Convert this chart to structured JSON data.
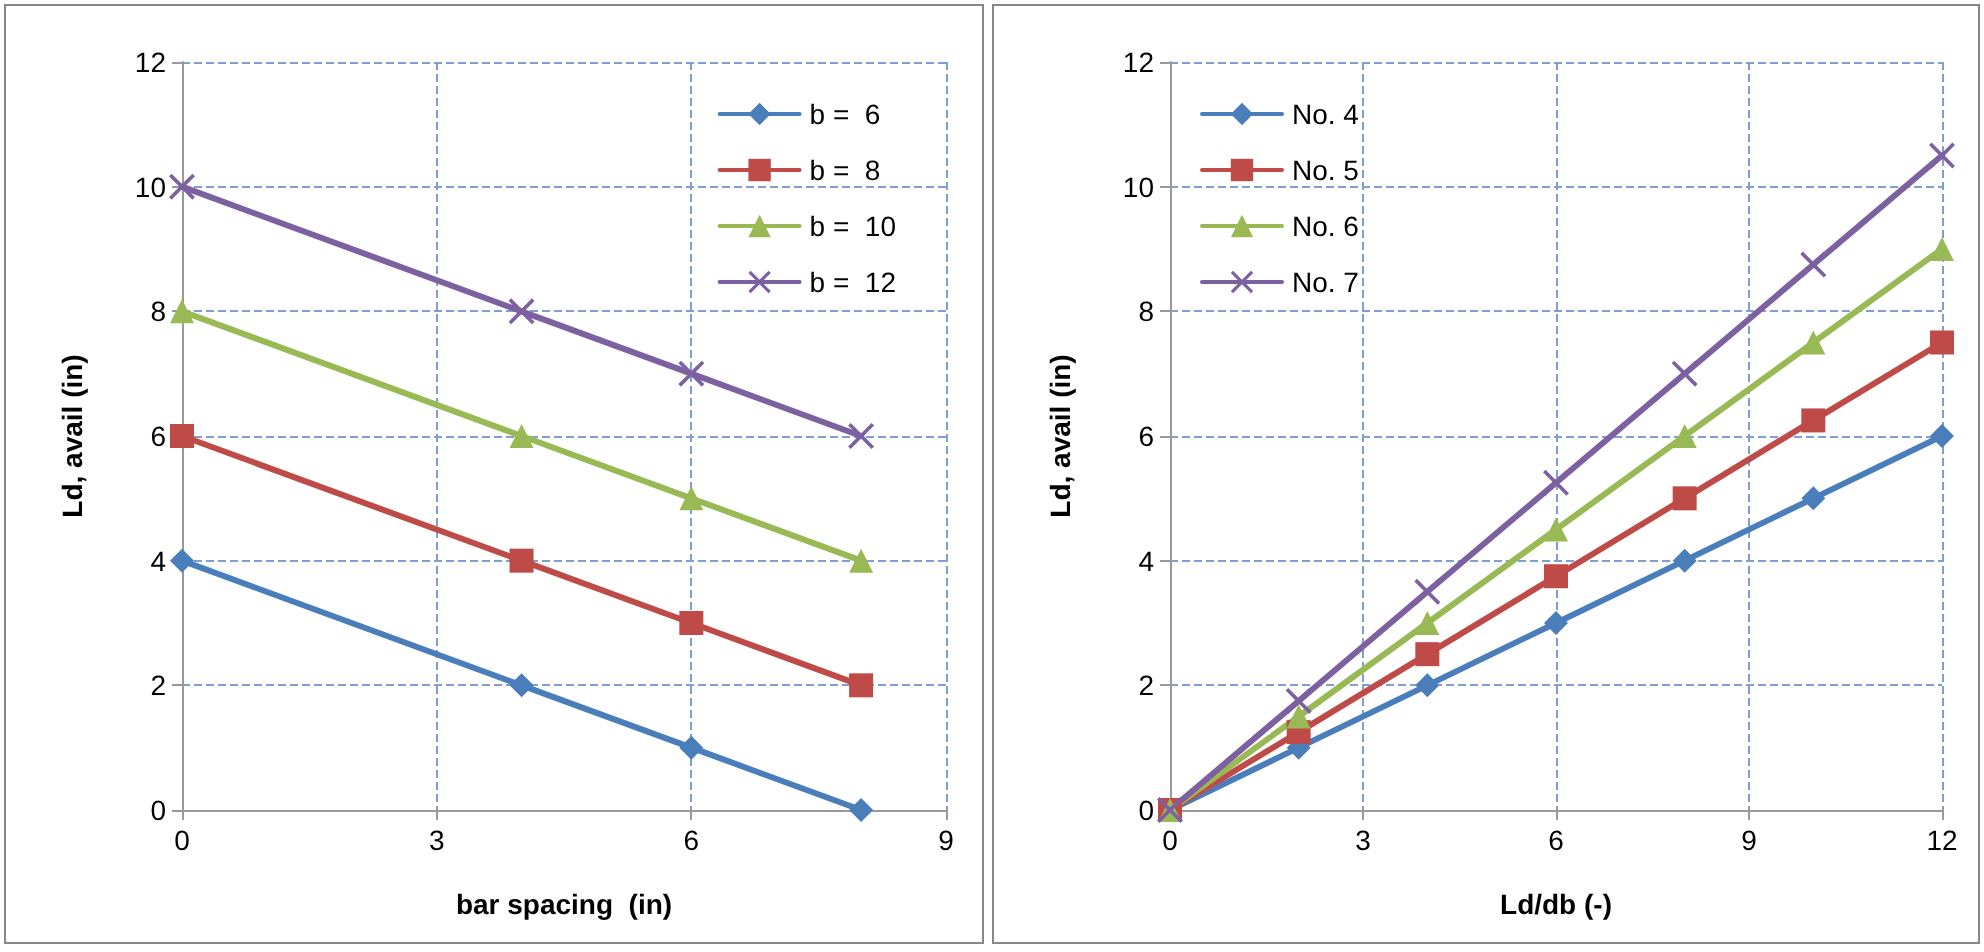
{
  "chart_data": [
    {
      "type": "line",
      "xlabel": "bar spacing  (in)",
      "ylabel": "Ld, avail (in)",
      "x": [
        0,
        4,
        6,
        8
      ],
      "xlim": [
        0,
        9
      ],
      "xticks": [
        0,
        3,
        6,
        9
      ],
      "ylim": [
        0,
        12
      ],
      "yticks": [
        0,
        2,
        4,
        6,
        8,
        10,
        12
      ],
      "grid": true,
      "legend": "top right",
      "line_style": "solid",
      "series": [
        {
          "name": "b =  6",
          "color": "#4a7ebb",
          "marker": "diamond",
          "values": [
            4,
            2,
            1,
            0
          ]
        },
        {
          "name": "b =  8",
          "color": "#be4b48",
          "marker": "square",
          "values": [
            6,
            4,
            3,
            2
          ]
        },
        {
          "name": "b =  10",
          "color": "#98b954",
          "marker": "triangle",
          "values": [
            8,
            6,
            5,
            4
          ]
        },
        {
          "name": "b =  12",
          "color": "#7d60a0",
          "marker": "cross",
          "values": [
            10,
            8,
            7,
            6
          ]
        }
      ]
    },
    {
      "type": "line",
      "xlabel": "Ld/db (-)",
      "ylabel": "Ld, avail (in)",
      "x": [
        0,
        2,
        4,
        6,
        8,
        10,
        12
      ],
      "xlim": [
        0,
        12
      ],
      "xticks": [
        0,
        3,
        6,
        9,
        12
      ],
      "ylim": [
        0,
        12
      ],
      "yticks": [
        0,
        2,
        4,
        6,
        8,
        10,
        12
      ],
      "grid": true,
      "legend": "top left",
      "line_style": "solid",
      "series": [
        {
          "name": "No. 4",
          "color": "#4a7ebb",
          "marker": "diamond",
          "values": [
            0,
            1,
            2,
            3,
            4,
            5,
            6
          ]
        },
        {
          "name": "No. 5",
          "color": "#be4b48",
          "marker": "square",
          "values": [
            0,
            1.25,
            2.5,
            3.75,
            5,
            6.25,
            7.5
          ]
        },
        {
          "name": "No. 6",
          "color": "#98b954",
          "marker": "triangle",
          "values": [
            0,
            1.5,
            3,
            4.5,
            6,
            7.5,
            9
          ]
        },
        {
          "name": "No. 7",
          "color": "#7d60a0",
          "marker": "cross",
          "values": [
            0,
            1.75,
            3.5,
            5.25,
            7,
            8.75,
            10.5
          ]
        }
      ]
    }
  ]
}
